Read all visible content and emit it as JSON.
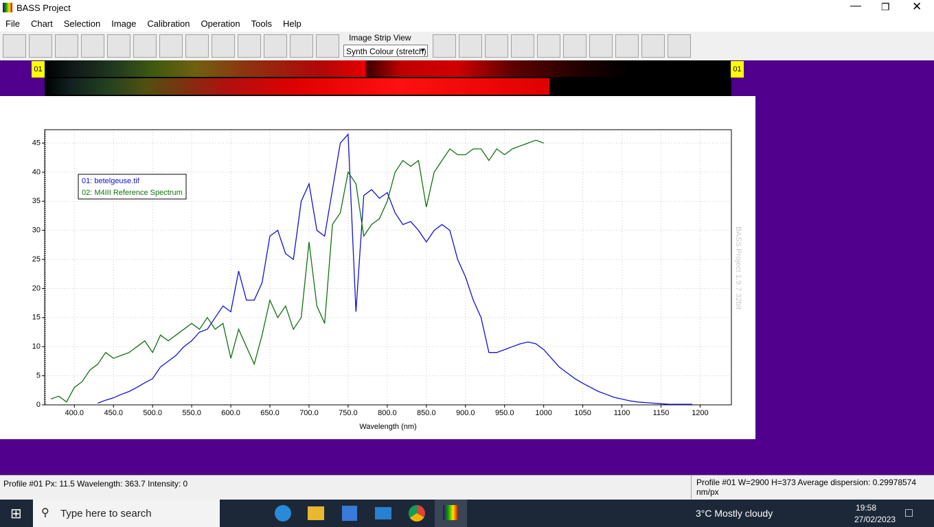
{
  "window": {
    "title": "BASS Project"
  },
  "menu": [
    "File",
    "Chart",
    "Selection",
    "Image",
    "Calibration",
    "Operation",
    "Tools",
    "Help"
  ],
  "toolbar": {
    "strip_label": "Image Strip View",
    "strip_mode": "Synth Colour (stretch)"
  },
  "strip": {
    "left_label": "01",
    "right_label": "01"
  },
  "chart_data": {
    "type": "line",
    "x_label": "Wavelength (nm)",
    "watermark": "BASS Project 1.9.7 32bit",
    "grid": true,
    "legend": "top-left",
    "xlim": [
      362,
      1240
    ],
    "ylim": [
      0,
      47.3
    ],
    "xticks": [
      {
        "value": 400,
        "label": "400.0"
      },
      {
        "value": 450,
        "label": "450.0"
      },
      {
        "value": 500,
        "label": "500.0"
      },
      {
        "value": 550,
        "label": "550.0"
      },
      {
        "value": 600,
        "label": "600.0"
      },
      {
        "value": 650,
        "label": "650.0"
      },
      {
        "value": 700,
        "label": "700.0"
      },
      {
        "value": 750,
        "label": "750.0"
      },
      {
        "value": 800,
        "label": "800.0"
      },
      {
        "value": 850,
        "label": "850.0"
      },
      {
        "value": 900,
        "label": "900.0"
      },
      {
        "value": 950,
        "label": "950.0"
      },
      1000,
      1050,
      1100,
      1150,
      1200
    ],
    "yticks": [
      0,
      5,
      10,
      15,
      20,
      25,
      30,
      35,
      40,
      45
    ],
    "x": [
      370,
      380,
      390,
      400,
      410,
      420,
      430,
      440,
      450,
      460,
      470,
      480,
      490,
      500,
      510,
      520,
      530,
      540,
      550,
      560,
      570,
      580,
      590,
      600,
      610,
      620,
      630,
      640,
      650,
      660,
      670,
      680,
      690,
      700,
      710,
      720,
      730,
      740,
      750,
      760,
      770,
      780,
      790,
      800,
      810,
      820,
      830,
      840,
      850,
      860,
      870,
      880,
      890,
      900,
      910,
      920,
      930,
      940,
      950,
      960,
      970,
      980,
      990,
      1000,
      1010,
      1020,
      1030,
      1040,
      1050,
      1060,
      1070,
      1080,
      1090,
      1100,
      1110,
      1120,
      1130,
      1140,
      1150,
      1160,
      1170,
      1180,
      1190
    ],
    "series": [
      {
        "name": "01: betelgeuse.tif",
        "color": "#1010d0",
        "values": [
          null,
          null,
          null,
          null,
          null,
          null,
          0.3,
          0.8,
          1.2,
          1.8,
          2.3,
          3,
          3.8,
          4.5,
          6.5,
          7.5,
          8.5,
          10,
          11,
          12.5,
          13,
          15,
          17,
          16,
          23,
          18,
          18,
          21,
          29,
          30,
          26,
          25,
          35,
          38,
          30,
          29,
          37,
          45,
          46.5,
          16,
          36,
          37,
          35.5,
          36.5,
          33,
          31,
          31.5,
          30,
          28,
          30,
          31,
          30,
          25,
          22,
          18,
          15,
          9,
          9,
          9.5,
          10,
          10.5,
          10.8,
          10.5,
          9.5,
          8,
          6.5,
          5.5,
          4.5,
          3.7,
          3,
          2.3,
          1.8,
          1.3,
          1,
          0.7,
          0.5,
          0.4,
          0.3,
          0.2,
          0.1,
          0.1,
          0.1,
          0.1
        ]
      },
      {
        "name": "02: M4III Reference Spectrum",
        "color": "#107010",
        "values": [
          1,
          1.5,
          0.5,
          3,
          4,
          6,
          7,
          9,
          8,
          8.5,
          9,
          10,
          11,
          9,
          12,
          11,
          12,
          13,
          14,
          13,
          15,
          13,
          14,
          8,
          13,
          10,
          7,
          12,
          18,
          15,
          17,
          13,
          15,
          28,
          17,
          14,
          31,
          33,
          40,
          38,
          29,
          31,
          32,
          35,
          40,
          42,
          41,
          42,
          34,
          40,
          42,
          44,
          43,
          43,
          44,
          44,
          42,
          44,
          43,
          44,
          44.5,
          45,
          45.5,
          45,
          null,
          null,
          null,
          null,
          null,
          null,
          null,
          null,
          null,
          null,
          null,
          null,
          null,
          null,
          null,
          null,
          null,
          null,
          null
        ]
      }
    ]
  },
  "status": {
    "left": "Profile #01  Px: 11.5  Wavelength: 363.7  Intensity:  0",
    "right": "Profile #01 W=2900 H=373  Average dispersion: 0.29978574 nm/px"
  },
  "taskbar": {
    "search": "Type here to search",
    "weather": "3°C  Mostly cloudy",
    "time": "19:58",
    "date": "27/02/2023"
  }
}
